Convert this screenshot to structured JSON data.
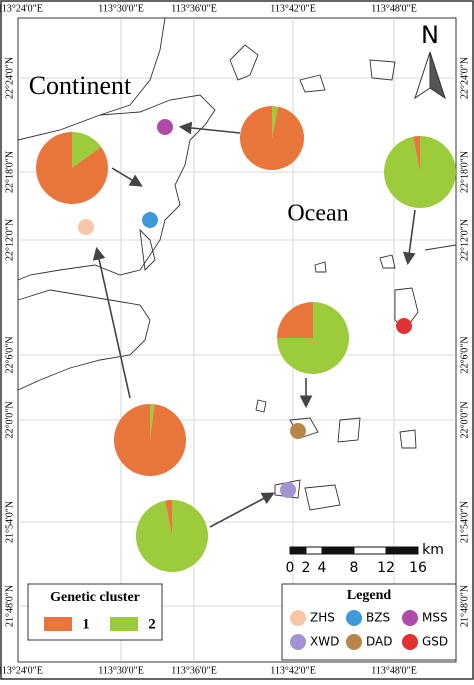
{
  "map": {
    "longitudes": [
      "113°24'0\"E",
      "113°30'0\"E",
      "113°36'0\"E",
      "113°42'0\"E",
      "113°48'0\"E"
    ],
    "latitudes": [
      "22°24'0\"N",
      "22°18'0\"N",
      "22°12'0\"N",
      "22°6'0\"N",
      "22°0'0\"N",
      "21°54'0\"N",
      "21°48'0\"N"
    ],
    "labels": {
      "continent": "Continent",
      "ocean": "Ocean"
    },
    "north": "N",
    "scale": {
      "unit": "km",
      "ticks": [
        0,
        2,
        4,
        8,
        12,
        16
      ]
    },
    "cluster_legend": {
      "title": "Genetic cluster",
      "clusters": [
        {
          "label": "1",
          "color": "#e8763a"
        },
        {
          "label": "2",
          "color": "#9ccb3b"
        }
      ]
    },
    "site_legend": {
      "title": "Legend",
      "sites": [
        {
          "name": "ZHS",
          "color": "#f8c6a6"
        },
        {
          "name": "BZS",
          "color": "#3d9ad6"
        },
        {
          "name": "MSS",
          "color": "#b04aa8"
        },
        {
          "name": "XWD",
          "color": "#a393d2"
        },
        {
          "name": "DAD",
          "color": "#b9864a"
        },
        {
          "name": "GSD",
          "color": "#e03232"
        }
      ]
    },
    "pies": [
      {
        "values": [
          85,
          15
        ]
      },
      {
        "values": [
          97,
          3
        ]
      },
      {
        "values": [
          3,
          97
        ]
      },
      {
        "values": [
          25,
          75
        ]
      },
      {
        "values": [
          98,
          2
        ]
      },
      {
        "values": [
          3,
          97
        ]
      }
    ]
  }
}
